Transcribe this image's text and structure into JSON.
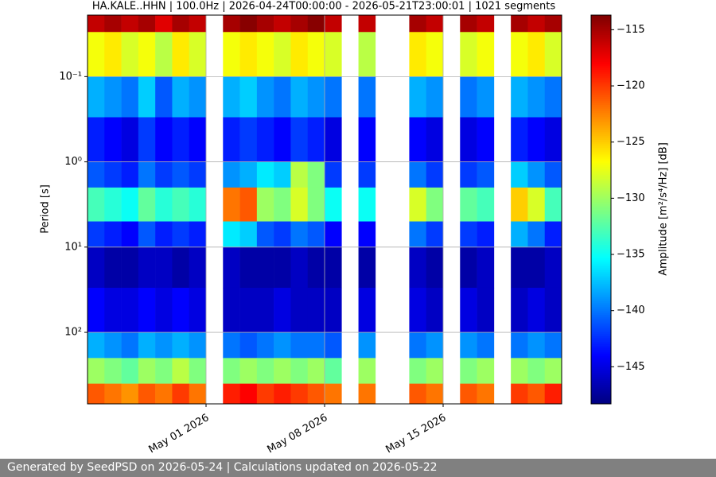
{
  "chart_data": {
    "type": "heatmap",
    "title": "HA.KALE..HHN | 100.0Hz | 2026-04-24T00:00:00 - 2026-05-21T23:00:01 | 1021 segments",
    "y_label": "Period [s]",
    "colorbar_label": "Amplitude [m²/s⁴/Hz] [dB]",
    "x": [
      "2026-04-24",
      "2026-04-25",
      "2026-04-26",
      "2026-04-27",
      "2026-04-28",
      "2026-04-29",
      "2026-04-30",
      "2026-05-01",
      "2026-05-02",
      "2026-05-03",
      "2026-05-04",
      "2026-05-05",
      "2026-05-06",
      "2026-05-07",
      "2026-05-08",
      "2026-05-09",
      "2026-05-10",
      "2026-05-11",
      "2026-05-12",
      "2026-05-13",
      "2026-05-14",
      "2026-05-15",
      "2026-05-16",
      "2026-05-17",
      "2026-05-18",
      "2026-05-19",
      "2026-05-20",
      "2026-05-21"
    ],
    "xlim": [
      "2026-04-24",
      "2026-05-22"
    ],
    "xticks": [
      {
        "value": "2026-05-01",
        "label": "May 01 2026"
      },
      {
        "value": "2026-05-08",
        "label": "May 08 2026"
      },
      {
        "value": "2026-05-15",
        "label": "May 15 2026"
      }
    ],
    "y_bins": [
      0.019,
      0.03,
      0.1,
      0.3,
      1,
      2,
      5,
      10,
      30,
      100,
      200,
      400,
      690
    ],
    "ylim": [
      0.019,
      690
    ],
    "y_log": true,
    "y_inverted": true,
    "yticks": [
      {
        "value": 0.1,
        "label": "10⁻¹"
      },
      {
        "value": 1,
        "label": "10⁰"
      },
      {
        "value": 10,
        "label": "10¹"
      },
      {
        "value": 100,
        "label": "10²"
      }
    ],
    "grid": true,
    "colormap": "jet",
    "zlim": [
      -148.3,
      -113.7
    ],
    "zticks": [
      {
        "value": -115,
        "label": "−115"
      },
      {
        "value": -120,
        "label": "−120"
      },
      {
        "value": -125,
        "label": "−125"
      },
      {
        "value": -130,
        "label": "−130"
      },
      {
        "value": -135,
        "label": "−135"
      },
      {
        "value": -140,
        "label": "−140"
      },
      {
        "value": -145,
        "label": "−145"
      }
    ],
    "z": [
      [
        -116,
        -115,
        -116,
        -115,
        -117,
        -115,
        -116,
        null,
        -115,
        -114,
        -115,
        -116,
        -115,
        -114,
        -116,
        null,
        -116,
        null,
        null,
        -115,
        -116,
        null,
        -115,
        -116,
        null,
        -115,
        -116,
        -115
      ],
      [
        -127,
        -126,
        -128,
        -127,
        -129,
        -126,
        -128,
        null,
        -127,
        -126,
        -127,
        -128,
        -126,
        -127,
        -128,
        null,
        -129,
        null,
        null,
        -126,
        -127,
        null,
        -128,
        -127,
        null,
        -127,
        -126,
        -128
      ],
      [
        -138,
        -139,
        -140,
        -137,
        -141,
        -138,
        -139,
        null,
        -138,
        -137,
        -139,
        -140,
        -138,
        -139,
        -140,
        null,
        -140,
        null,
        null,
        -138,
        -139,
        null,
        -140,
        -139,
        null,
        -138,
        -139,
        -140
      ],
      [
        -143,
        -144,
        -145,
        -142,
        -144,
        -143,
        -144,
        null,
        -143,
        -142,
        -143,
        -144,
        -142,
        -143,
        -145,
        null,
        -144,
        null,
        null,
        -144,
        -145,
        null,
        -145,
        -144,
        null,
        -143,
        -144,
        -145
      ],
      [
        -141,
        -142,
        -143,
        -140,
        -142,
        -141,
        -142,
        null,
        -139,
        -138,
        -136,
        -137,
        -129,
        -131,
        -142,
        null,
        -142,
        null,
        null,
        -140,
        -142,
        null,
        -142,
        -141,
        null,
        -137,
        -139,
        -141
      ],
      [
        -133,
        -134,
        -135,
        -132,
        -134,
        -133,
        -134,
        null,
        -122,
        -121,
        -130,
        -131,
        -128,
        -131,
        -135,
        null,
        -135,
        null,
        null,
        -128,
        -131,
        null,
        -132,
        -133,
        null,
        -125,
        -128,
        -133
      ],
      [
        -142,
        -143,
        -144,
        -141,
        -143,
        -142,
        -143,
        null,
        -136,
        -137,
        -141,
        -142,
        -140,
        -141,
        -144,
        null,
        -144,
        null,
        null,
        -140,
        -142,
        null,
        -142,
        -143,
        null,
        -138,
        -140,
        -143
      ],
      [
        -146,
        -147,
        -147,
        -146,
        -146,
        -147,
        -146,
        null,
        -146,
        -147,
        -147,
        -147,
        -146,
        -147,
        -147,
        null,
        -147,
        null,
        null,
        -146,
        -147,
        null,
        -147,
        -146,
        null,
        -147,
        -147,
        -146
      ],
      [
        -144,
        -145,
        -145,
        -144,
        -145,
        -144,
        -145,
        null,
        -146,
        -146,
        -146,
        -145,
        -146,
        -146,
        -146,
        null,
        -145,
        null,
        null,
        -145,
        -146,
        null,
        -145,
        -146,
        null,
        -146,
        -145,
        -146
      ],
      [
        -138,
        -139,
        -140,
        -138,
        -139,
        -138,
        -139,
        null,
        -140,
        -141,
        -140,
        -139,
        -140,
        -140,
        -141,
        null,
        -139,
        null,
        null,
        -140,
        -139,
        null,
        -139,
        -140,
        null,
        -140,
        -139,
        -140
      ],
      [
        -130,
        -131,
        -132,
        -130,
        -131,
        -129,
        -131,
        null,
        -131,
        -130,
        -131,
        -130,
        -131,
        -130,
        -132,
        null,
        -130,
        null,
        null,
        -131,
        -130,
        null,
        -131,
        -130,
        null,
        -130,
        -131,
        -130
      ],
      [
        -121,
        -122,
        -123,
        -121,
        -122,
        -120,
        -122,
        null,
        -119,
        -118,
        -120,
        -119,
        -120,
        -121,
        -122,
        null,
        -122,
        null,
        null,
        -121,
        -122,
        null,
        -121,
        -122,
        null,
        -120,
        -121,
        -119
      ]
    ]
  },
  "footer": "Generated by SeedPSD on 2026-05-24 | Calculations updated on 2026-05-22"
}
